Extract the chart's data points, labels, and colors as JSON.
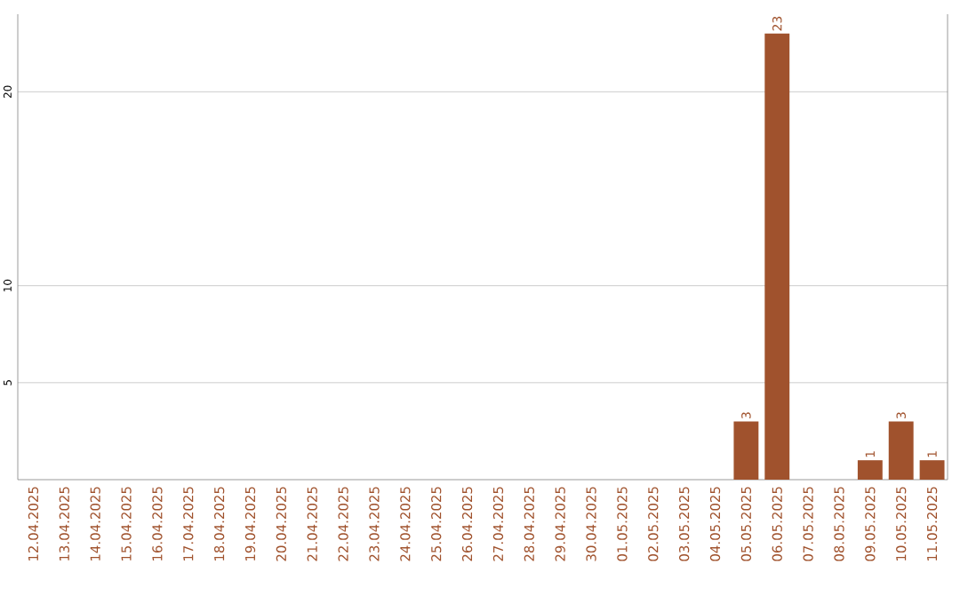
{
  "chart_data": {
    "type": "bar",
    "categories": [
      "12.04.2025",
      "13.04.2025",
      "14.04.2025",
      "15.04.2025",
      "16.04.2025",
      "17.04.2025",
      "18.04.2025",
      "19.04.2025",
      "20.04.2025",
      "21.04.2025",
      "22.04.2025",
      "23.04.2025",
      "24.04.2025",
      "25.04.2025",
      "26.04.2025",
      "27.04.2025",
      "28.04.2025",
      "29.04.2025",
      "30.04.2025",
      "01.05.2025",
      "02.05.2025",
      "03.05.2025",
      "04.05.2025",
      "05.05.2025",
      "06.05.2025",
      "07.05.2025",
      "08.05.2025",
      "09.05.2025",
      "10.05.2025",
      "11.05.2025"
    ],
    "values": [
      0,
      0,
      0,
      0,
      0,
      0,
      0,
      0,
      0,
      0,
      0,
      0,
      0,
      0,
      0,
      0,
      0,
      0,
      0,
      0,
      0,
      0,
      0,
      3,
      23,
      0,
      0,
      1,
      3,
      1
    ],
    "value_labels": [
      null,
      null,
      null,
      null,
      null,
      null,
      null,
      null,
      null,
      null,
      null,
      null,
      null,
      null,
      null,
      null,
      null,
      null,
      null,
      null,
      null,
      null,
      null,
      "3",
      "23",
      null,
      null,
      "1",
      "3",
      "1"
    ],
    "color": "#a0522d",
    "ylim": [
      0,
      24
    ],
    "yticks": [
      5,
      10,
      20
    ],
    "grid": "y"
  }
}
